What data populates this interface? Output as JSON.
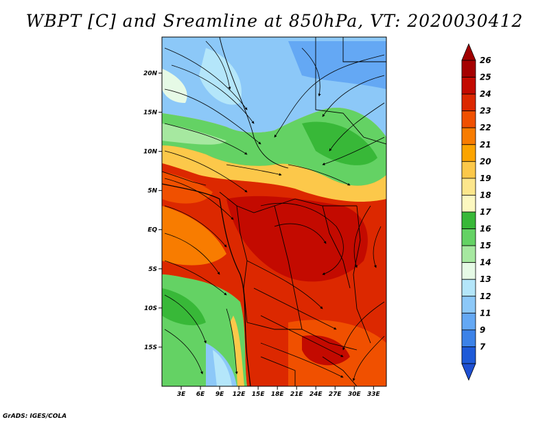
{
  "title": "WBPT [C] and Sreamline at 850hPa, VT: 2020030412",
  "credit": "GrADS: IGES/COLA",
  "map": {
    "lat_labels": [
      {
        "label": "20N",
        "lat": 20
      },
      {
        "label": "15N",
        "lat": 15
      },
      {
        "label": "10N",
        "lat": 10
      },
      {
        "label": "5N",
        "lat": 5
      },
      {
        "label": "EQ",
        "lat": 0
      },
      {
        "label": "5S",
        "lat": -5
      },
      {
        "label": "10S",
        "lat": -10
      },
      {
        "label": "15S",
        "lat": -15
      }
    ],
    "lon_labels": [
      {
        "label": "3E",
        "lon": 3
      },
      {
        "label": "6E",
        "lon": 6
      },
      {
        "label": "9E",
        "lon": 9
      },
      {
        "label": "12E",
        "lon": 12
      },
      {
        "label": "15E",
        "lon": 15
      },
      {
        "label": "18E",
        "lon": 18
      },
      {
        "label": "21E",
        "lon": 21
      },
      {
        "label": "24E",
        "lon": 24
      },
      {
        "label": "27E",
        "lon": 27
      },
      {
        "label": "30E",
        "lon": 30
      },
      {
        "label": "33E",
        "lon": 33
      }
    ]
  },
  "colorbar": {
    "levels": [
      {
        "label": "26",
        "color": "#a50000"
      },
      {
        "label": "25",
        "color": "#c30a00"
      },
      {
        "label": "24",
        "color": "#dc2800"
      },
      {
        "label": "23",
        "color": "#f05000"
      },
      {
        "label": "22",
        "color": "#f87c00"
      },
      {
        "label": "21",
        "color": "#fca400"
      },
      {
        "label": "20",
        "color": "#fcc84a"
      },
      {
        "label": "19",
        "color": "#fce68c"
      },
      {
        "label": "18",
        "color": "#fcf8c0"
      },
      {
        "label": "17",
        "color": "#38b838"
      },
      {
        "label": "16",
        "color": "#64d264"
      },
      {
        "label": "15",
        "color": "#a6e8a0"
      },
      {
        "label": "14",
        "color": "#e6fae6"
      },
      {
        "label": "13",
        "color": "#b4e6fa"
      },
      {
        "label": "12",
        "color": "#8cc8f8"
      },
      {
        "label": "11",
        "color": "#64a8f4"
      },
      {
        "label": "9",
        "color": "#3c82e8"
      },
      {
        "label": "7",
        "color": "#1e5ad8"
      }
    ],
    "top_color": "#a00000",
    "bottom_color": "#1e50d2"
  }
}
